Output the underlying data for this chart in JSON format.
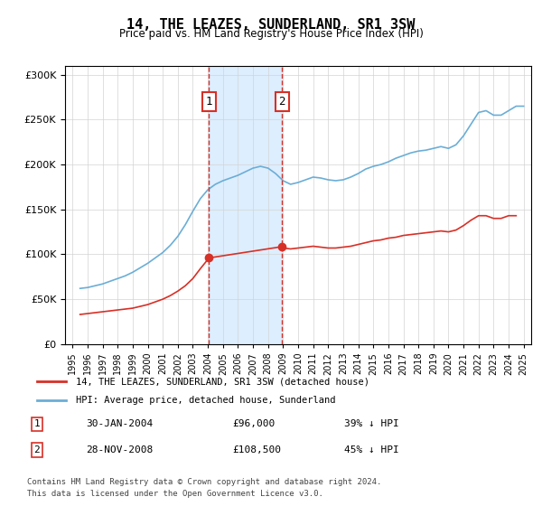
{
  "title": "14, THE LEAZES, SUNDERLAND, SR1 3SW",
  "subtitle": "Price paid vs. HM Land Registry's House Price Index (HPI)",
  "legend_line1": "14, THE LEAZES, SUNDERLAND, SR1 3SW (detached house)",
  "legend_line2": "HPI: Average price, detached house, Sunderland",
  "annotation1": {
    "label": "1",
    "date_str": "30-JAN-2004",
    "price_str": "£96,000",
    "pct_str": "39% ↓ HPI",
    "x_year": 2004.08,
    "y_val": 96000
  },
  "annotation2": {
    "label": "2",
    "date_str": "28-NOV-2008",
    "price_str": "£108,500",
    "pct_str": "45% ↓ HPI",
    "x_year": 2008.92,
    "y_val": 108500
  },
  "footer1": "Contains HM Land Registry data © Crown copyright and database right 2024.",
  "footer2": "This data is licensed under the Open Government Licence v3.0.",
  "hpi_color": "#6baed6",
  "price_color": "#d73027",
  "annotation_box_color": "#d73027",
  "shading_color": "#ddeeff",
  "xlim_left": 1994.5,
  "xlim_right": 2025.5,
  "ylim_bottom": 0,
  "ylim_top": 310000,
  "yticks": [
    0,
    50000,
    100000,
    150000,
    200000,
    250000,
    300000
  ],
  "xticks": [
    1995,
    1996,
    1997,
    1998,
    1999,
    2000,
    2001,
    2002,
    2003,
    2004,
    2005,
    2006,
    2007,
    2008,
    2009,
    2010,
    2011,
    2012,
    2013,
    2014,
    2015,
    2016,
    2017,
    2018,
    2019,
    2020,
    2021,
    2022,
    2023,
    2024,
    2025
  ],
  "hpi_data": {
    "years": [
      1995.5,
      1996.0,
      1996.5,
      1997.0,
      1997.5,
      1998.0,
      1998.5,
      1999.0,
      1999.5,
      2000.0,
      2000.5,
      2001.0,
      2001.5,
      2002.0,
      2002.5,
      2003.0,
      2003.5,
      2004.0,
      2004.5,
      2005.0,
      2005.5,
      2006.0,
      2006.5,
      2007.0,
      2007.5,
      2008.0,
      2008.5,
      2009.0,
      2009.5,
      2010.0,
      2010.5,
      2011.0,
      2011.5,
      2012.0,
      2012.5,
      2013.0,
      2013.5,
      2014.0,
      2014.5,
      2015.0,
      2015.5,
      2016.0,
      2016.5,
      2017.0,
      2017.5,
      2018.0,
      2018.5,
      2019.0,
      2019.5,
      2020.0,
      2020.5,
      2021.0,
      2021.5,
      2022.0,
      2022.5,
      2023.0,
      2023.5,
      2024.0,
      2024.5,
      2025.0
    ],
    "values": [
      62000,
      63000,
      65000,
      67000,
      70000,
      73000,
      76000,
      80000,
      85000,
      90000,
      96000,
      102000,
      110000,
      120000,
      133000,
      148000,
      162000,
      172000,
      178000,
      182000,
      185000,
      188000,
      192000,
      196000,
      198000,
      196000,
      190000,
      182000,
      178000,
      180000,
      183000,
      186000,
      185000,
      183000,
      182000,
      183000,
      186000,
      190000,
      195000,
      198000,
      200000,
      203000,
      207000,
      210000,
      213000,
      215000,
      216000,
      218000,
      220000,
      218000,
      222000,
      232000,
      245000,
      258000,
      260000,
      255000,
      255000,
      260000,
      265000,
      265000
    ]
  },
  "price_data": {
    "years": [
      1995.5,
      1996.0,
      1996.5,
      1997.0,
      1997.5,
      1998.0,
      1998.5,
      1999.0,
      1999.5,
      2000.0,
      2000.5,
      2001.0,
      2001.5,
      2002.0,
      2002.5,
      2003.0,
      2003.5,
      2004.08,
      2008.92,
      2009.0,
      2009.5,
      2010.0,
      2010.5,
      2011.0,
      2011.5,
      2012.0,
      2012.5,
      2013.0,
      2013.5,
      2014.0,
      2014.5,
      2015.0,
      2015.5,
      2016.0,
      2016.5,
      2017.0,
      2017.5,
      2018.0,
      2018.5,
      2019.0,
      2019.5,
      2020.0,
      2020.5,
      2021.0,
      2021.5,
      2022.0,
      2022.5,
      2023.0,
      2023.5,
      2024.0,
      2024.5
    ],
    "values": [
      33000,
      34000,
      35000,
      36000,
      37000,
      38000,
      39000,
      40000,
      42000,
      44000,
      47000,
      50000,
      54000,
      59000,
      65000,
      73000,
      84000,
      96000,
      108500,
      107000,
      106000,
      107000,
      108000,
      109000,
      108000,
      107000,
      107000,
      108000,
      109000,
      111000,
      113000,
      115000,
      116000,
      118000,
      119000,
      121000,
      122000,
      123000,
      124000,
      125000,
      126000,
      125000,
      127000,
      132000,
      138000,
      143000,
      143000,
      140000,
      140000,
      143000,
      143000
    ]
  }
}
